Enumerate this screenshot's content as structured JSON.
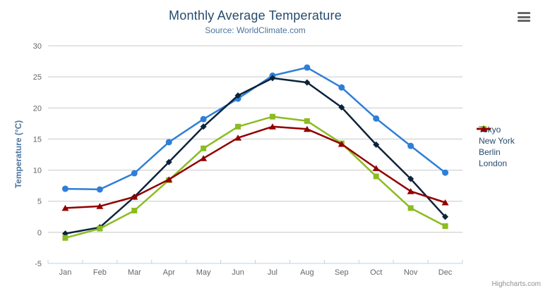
{
  "chart_data": {
    "type": "line",
    "title": "Monthly Average Temperature",
    "subtitle": "Source: WorldClimate.com",
    "categories": [
      "Jan",
      "Feb",
      "Mar",
      "Apr",
      "May",
      "Jun",
      "Jul",
      "Aug",
      "Sep",
      "Oct",
      "Nov",
      "Dec"
    ],
    "series": [
      {
        "name": "Tokyo",
        "color": "#2f7ed8",
        "marker": "circle",
        "values": [
          7.0,
          6.9,
          9.5,
          14.5,
          18.2,
          21.5,
          25.2,
          26.5,
          23.3,
          18.3,
          13.9,
          9.6
        ]
      },
      {
        "name": "New York",
        "color": "#0d233a",
        "marker": "diamond",
        "values": [
          -0.2,
          0.8,
          5.7,
          11.3,
          17.0,
          22.0,
          24.8,
          24.1,
          20.1,
          14.1,
          8.6,
          2.5
        ]
      },
      {
        "name": "Berlin",
        "color": "#8bbc21",
        "marker": "square",
        "values": [
          -0.9,
          0.6,
          3.5,
          8.4,
          13.5,
          17.0,
          18.6,
          17.9,
          14.3,
          9.0,
          3.9,
          1.0
        ]
      },
      {
        "name": "London",
        "color": "#910000",
        "marker": "triangle",
        "values": [
          3.9,
          4.2,
          5.7,
          8.5,
          11.9,
          15.2,
          17.0,
          16.6,
          14.2,
          10.3,
          6.6,
          4.8
        ]
      }
    ],
    "xlabel": "",
    "ylabel": "Temperature (°C)",
    "ylim": [
      -5,
      30
    ],
    "ytick_interval": 5,
    "grid": "horizontal-only",
    "legend_position": "right"
  },
  "colors": {
    "grid": "#c8c8c8",
    "axis_line": "#c0d0e0",
    "tick_label": "#666666",
    "title": "#274b6d",
    "subtitle": "#4d759e",
    "axis_title": "#4d759e",
    "legend_text": "#274b6d",
    "credits": "#909090",
    "menu_icon": "#666666"
  },
  "credits": {
    "label": "Highcharts.com"
  },
  "menu": {
    "icon": "hamburger-icon"
  }
}
